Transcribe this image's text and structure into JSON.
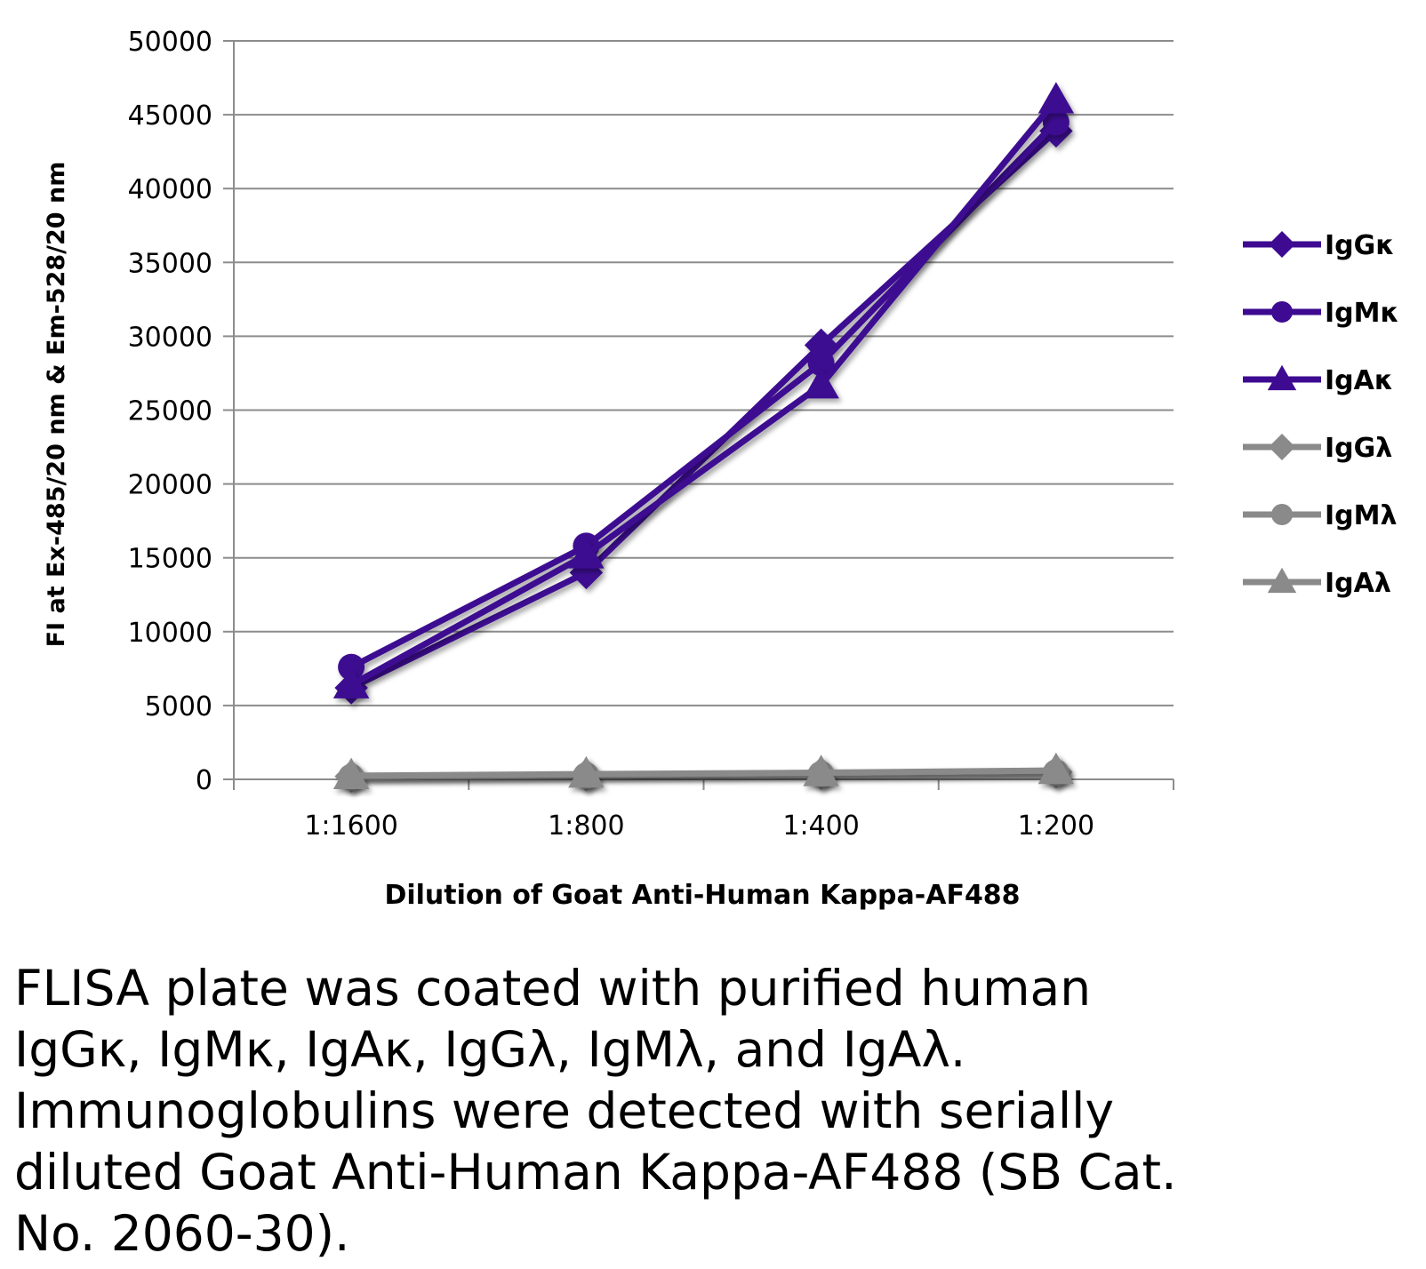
{
  "chart_data": {
    "type": "line",
    "title": "",
    "xlabel": "Dilution of Goat Anti-Human Kappa-AF488",
    "ylabel": "FI at Ex-485/20 nm & Em-528/20 nm",
    "categories": [
      "1:1600",
      "1:800",
      "1:400",
      "1:200"
    ],
    "ylim": [
      0,
      50000
    ],
    "yticks": [
      "0",
      "5000",
      "10000",
      "15000",
      "20000",
      "25000",
      "30000",
      "35000",
      "40000",
      "45000",
      "50000"
    ],
    "grid": true,
    "legend_position": "right",
    "series": [
      {
        "name": "IgGκ",
        "values": [
          6200,
          14000,
          29400,
          43900
        ],
        "color": "#3d0a91",
        "marker": "diamond"
      },
      {
        "name": "IgMκ",
        "values": [
          7600,
          15800,
          28200,
          44500
        ],
        "color": "#3d0a91",
        "marker": "circle"
      },
      {
        "name": "IgAκ",
        "values": [
          6400,
          15200,
          26700,
          46000
        ],
        "color": "#3d0a91",
        "marker": "triangle"
      },
      {
        "name": "IgGλ",
        "values": [
          200,
          300,
          400,
          500
        ],
        "color": "#8a8a8a",
        "marker": "diamond"
      },
      {
        "name": "IgMλ",
        "values": [
          150,
          250,
          350,
          450
        ],
        "color": "#8a8a8a",
        "marker": "circle"
      },
      {
        "name": "IgAλ",
        "values": [
          250,
          350,
          450,
          600
        ],
        "color": "#8a8a8a",
        "marker": "triangle"
      }
    ]
  },
  "caption": {
    "lines": [
      "FLISA plate was coated with purified human",
      "IgGκ, IgMκ, IgAκ, IgGλ, IgMλ, and IgAλ.",
      "Immunoglobulins were detected with serially",
      "diluted Goat Anti-Human Kappa-AF488 (SB Cat.",
      "No. 2060-30)."
    ]
  }
}
